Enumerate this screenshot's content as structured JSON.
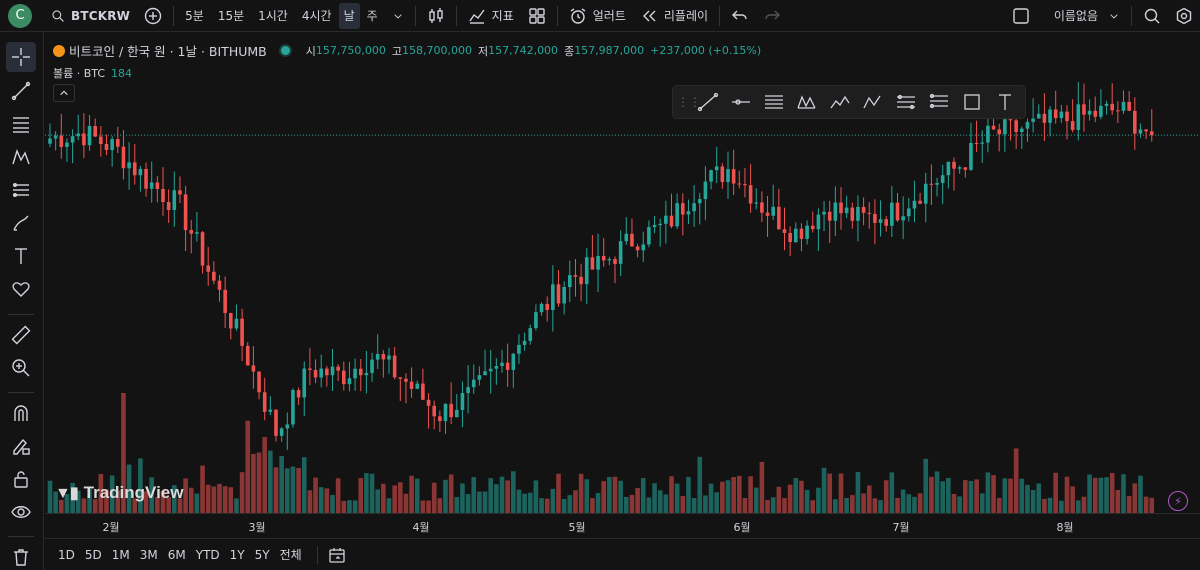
{
  "topbar": {
    "avatar_letter": "C",
    "symbol": "BTCKRW",
    "intervals": [
      "5분",
      "15분",
      "1시간",
      "4시간",
      "날",
      "주"
    ],
    "indicators_label": "지표",
    "alert_label": "얼러트",
    "replay_label": "리플레이",
    "layout_name": "이름없음"
  },
  "legend": {
    "title": "비트코인 / 한국 원 · 1날 · BITHUMB",
    "open_key": "시",
    "open": "157,750,000",
    "high_key": "고",
    "high": "158,700,000",
    "low_key": "저",
    "low": "157,742,000",
    "close_key": "종",
    "close": "157,987,000",
    "change": "+237,000 (+0.15%)",
    "volume_key": "볼륨 · BTC",
    "volume": "184"
  },
  "time_axis": [
    "2월",
    "3월",
    "4월",
    "5월",
    "6월",
    "7월",
    "8월"
  ],
  "bottom": {
    "ranges": [
      "1D",
      "5D",
      "1M",
      "3M",
      "6M",
      "YTD",
      "1Y",
      "5Y",
      "전체"
    ]
  },
  "logo_text": "TradingView",
  "colors": {
    "up": "#26a69a",
    "down": "#ef5350",
    "bg": "#131313",
    "price_line": "#26a69a"
  },
  "chart_data": {
    "type": "candlestick",
    "title": "비트코인 / 한국 원 · 1날 · BITHUMB",
    "interval": "1D",
    "months": [
      "2월",
      "3월",
      "4월",
      "5월",
      "6월",
      "7월",
      "8월"
    ],
    "last": {
      "open": 157750000,
      "high": 158700000,
      "low": 157742000,
      "close": 157987000
    },
    "close_path_approx": [
      157500000,
      158300000,
      156000000,
      151000000,
      147000000,
      136000000,
      125000000,
      112000000,
      122000000,
      121000000,
      124000000,
      120000000,
      115000000,
      118000000,
      123000000,
      130000000,
      136000000,
      138000000,
      142000000,
      144000000,
      150000000,
      153000000,
      147000000,
      143000000,
      147000000,
      145000000,
      146000000,
      150000000,
      153000000,
      158000000,
      159000000,
      160000000,
      161000000,
      162000000,
      158000000
    ]
  }
}
